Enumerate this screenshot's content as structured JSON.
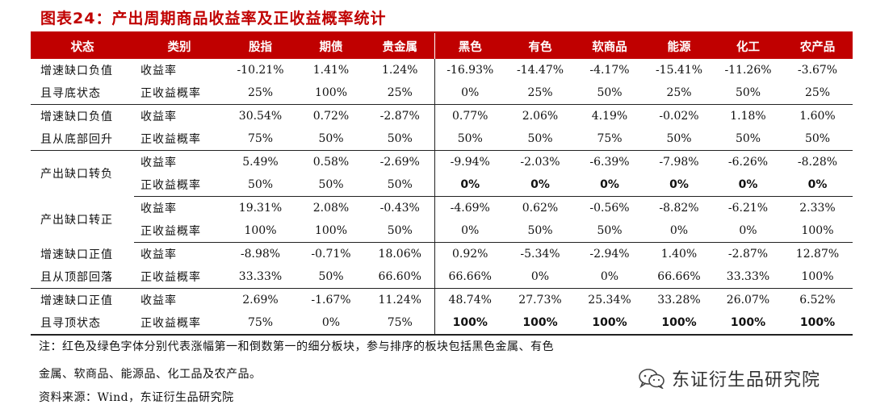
{
  "title": "图表24：产出周期商品收益率及正收益概率统计",
  "headers": [
    "状态",
    "类别",
    "股指",
    "期债",
    "贵金属",
    "黑色",
    "有色",
    "软商品",
    "能源",
    "化工",
    "农产品"
  ],
  "groups": [
    {
      "state": [
        "增速缺口负值",
        "且寻底状态"
      ],
      "rows": [
        {
          "label": "收益率",
          "values": [
            "-10.21%",
            "1.41%",
            "1.24%",
            "-16.93%",
            "-14.47%",
            "-4.17%",
            "-15.41%",
            "-11.26%",
            "-3.67%"
          ]
        },
        {
          "label": "正收益概率",
          "values": [
            "25%",
            "100%",
            "25%",
            "0%",
            "25%",
            "50%",
            "25%",
            "50%",
            "25%"
          ]
        }
      ]
    },
    {
      "state": [
        "增速缺口负值",
        "且从底部回升"
      ],
      "rows": [
        {
          "label": "收益率",
          "values": [
            "30.54%",
            "0.72%",
            "-2.87%",
            "0.77%",
            "2.06%",
            "4.19%",
            "-0.02%",
            "1.18%",
            "1.60%"
          ]
        },
        {
          "label": "正收益概率",
          "values": [
            "75%",
            "50%",
            "50%",
            "50%",
            "50%",
            "75%",
            "50%",
            "50%",
            "50%"
          ]
        }
      ]
    },
    {
      "state": [
        "产出缺口转负"
      ],
      "rows": [
        {
          "label": "收益率",
          "values": [
            "5.49%",
            "0.58%",
            "-2.69%",
            "-9.94%",
            "-2.03%",
            "-6.39%",
            "-7.98%",
            "-6.26%",
            "-8.28%"
          ]
        },
        {
          "label": "正收益概率",
          "values": [
            "50%",
            "50%",
            "50%",
            "0%",
            "0%",
            "0%",
            "0%",
            "0%",
            "0%"
          ],
          "bold_from": 3
        }
      ]
    },
    {
      "state": [
        "产出缺口转正"
      ],
      "rows": [
        {
          "label": "收益率",
          "values": [
            "19.31%",
            "2.08%",
            "-0.43%",
            "-4.69%",
            "0.62%",
            "-0.56%",
            "-8.82%",
            "-6.21%",
            "2.33%"
          ]
        },
        {
          "label": "正收益概率",
          "values": [
            "100%",
            "100%",
            "50%",
            "0%",
            "50%",
            "50%",
            "0%",
            "0%",
            "100%"
          ]
        }
      ]
    },
    {
      "state": [
        "增速缺口正值",
        "且从顶部回落"
      ],
      "rows": [
        {
          "label": "收益率",
          "values": [
            "-8.98%",
            "-0.71%",
            "18.06%",
            "0.92%",
            "-5.34%",
            "-2.94%",
            "1.40%",
            "-2.87%",
            "12.87%"
          ]
        },
        {
          "label": "正收益概率",
          "values": [
            "33.33%",
            "50%",
            "66.60%",
            "66.66%",
            "0%",
            "0%",
            "66.66%",
            "33.33%",
            "100%"
          ]
        }
      ]
    },
    {
      "state": [
        "增速缺口正值",
        "且寻顶状态"
      ],
      "rows": [
        {
          "label": "收益率",
          "values": [
            "2.69%",
            "-1.67%",
            "11.24%",
            "48.74%",
            "27.73%",
            "25.34%",
            "33.28%",
            "26.07%",
            "6.52%"
          ]
        },
        {
          "label": "正收益概率",
          "values": [
            "75%",
            "0%",
            "75%",
            "100%",
            "100%",
            "100%",
            "100%",
            "100%",
            "100%"
          ],
          "bold_from": 3
        }
      ]
    }
  ],
  "notes": [
    "注：红色及绿色字体分别代表涨幅第一和倒数第一的细分板块，参与排序的板块包括黑色金属、有色",
    "金属、软商品、能源品、化工品及农产品。",
    "资料来源：Wind，东证衍生品研究院"
  ],
  "watermark": {
    "icon": "wechat-icon",
    "text": "东证衍生品研究院"
  }
}
